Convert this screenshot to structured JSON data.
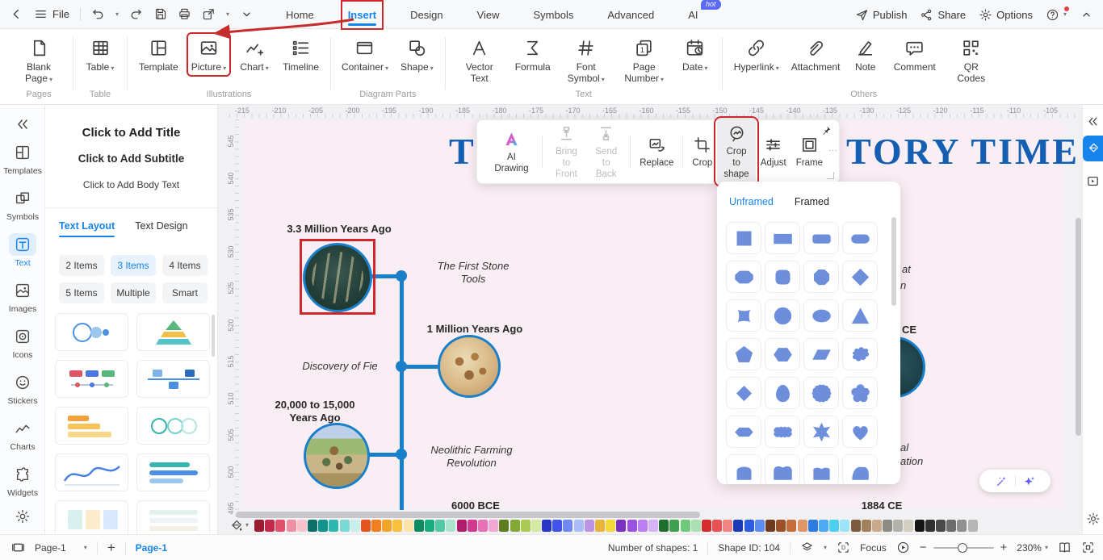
{
  "titlebar": {
    "file_label": "File",
    "tabs": [
      {
        "label": "Home"
      },
      {
        "label": "Insert",
        "active": true,
        "highlight": true
      },
      {
        "label": "Design"
      },
      {
        "label": "View"
      },
      {
        "label": "Symbols"
      },
      {
        "label": "Advanced"
      },
      {
        "label": "AI",
        "badge": "hot"
      }
    ],
    "publish_label": "Publish",
    "share_label": "Share",
    "options_label": "Options"
  },
  "ribbon": {
    "groups": [
      {
        "label": "Pages",
        "buttons": [
          {
            "label": "Blank Page",
            "icon": "blank-page",
            "dropdown": true
          }
        ]
      },
      {
        "label": "Table",
        "buttons": [
          {
            "label": "Table",
            "icon": "table",
            "dropdown": true
          }
        ]
      },
      {
        "label": "Illustrations",
        "buttons": [
          {
            "label": "Template",
            "icon": "template"
          },
          {
            "label": "Picture",
            "icon": "picture",
            "dropdown": true,
            "highlight": true
          },
          {
            "label": "Chart",
            "icon": "chart",
            "dropdown": true
          },
          {
            "label": "Timeline",
            "icon": "timeline"
          }
        ]
      },
      {
        "label": "Diagram Parts",
        "buttons": [
          {
            "label": "Container",
            "icon": "container",
            "dropdown": true
          },
          {
            "label": "Shape",
            "icon": "shape",
            "dropdown": true
          }
        ]
      },
      {
        "label": "Text",
        "buttons": [
          {
            "label": "Vector Text",
            "icon": "vector-text"
          },
          {
            "label": "Formula",
            "icon": "formula"
          },
          {
            "label": "Font Symbol",
            "icon": "font-symbol",
            "dropdown": true
          },
          {
            "label": "Page Number",
            "icon": "page-number",
            "dropdown": true
          },
          {
            "label": "Date",
            "icon": "date",
            "dropdown": true
          }
        ]
      },
      {
        "label": "Others",
        "buttons": [
          {
            "label": "Hyperlink",
            "icon": "hyperlink",
            "dropdown": true
          },
          {
            "label": "Attachment",
            "icon": "attachment"
          },
          {
            "label": "Note",
            "icon": "note"
          },
          {
            "label": "Comment",
            "icon": "comment"
          },
          {
            "label": "QR Codes",
            "icon": "qr-codes"
          }
        ]
      }
    ]
  },
  "left_rail": {
    "items": [
      {
        "label": "Templates",
        "icon": "templates"
      },
      {
        "label": "Symbols",
        "icon": "symbols"
      },
      {
        "label": "Text",
        "icon": "text",
        "active": true
      },
      {
        "label": "Images",
        "icon": "images"
      },
      {
        "label": "Icons",
        "icon": "icons"
      },
      {
        "label": "Stickers",
        "icon": "stickers"
      },
      {
        "label": "Charts",
        "icon": "charts"
      },
      {
        "label": "Widgets",
        "icon": "widgets"
      }
    ]
  },
  "text_panel": {
    "preview_title": "Click to Add Title",
    "preview_subtitle": "Click to Add Subtitle",
    "preview_body": "Click to Add Body Text",
    "tabs": [
      {
        "label": "Text Layout",
        "active": true
      },
      {
        "label": "Text Design"
      }
    ],
    "filters": [
      {
        "label": "2 Items"
      },
      {
        "label": "3 Items",
        "active": true
      },
      {
        "label": "4 Items"
      },
      {
        "label": "5 Items"
      },
      {
        "label": "Multiple"
      },
      {
        "label": "Smart"
      }
    ],
    "thumbnails": [
      "circles-diagram",
      "pyramid-diagram",
      "process-arrows",
      "timeline-boxes",
      "timeline-orange",
      "dot-circles",
      "wave-chart",
      "bar-list",
      "pale-boxes",
      "mini-rows"
    ]
  },
  "floating_toolbar": {
    "items": [
      {
        "label": "AI Drawing",
        "icon": "ai-drawing",
        "sep_after": true
      },
      {
        "label": "Bring to\nFront",
        "icon": "bring-front",
        "disabled": true
      },
      {
        "label": "Send to\nBack",
        "icon": "send-back",
        "disabled": true,
        "sep_after": true
      },
      {
        "label": "Replace",
        "icon": "replace",
        "sep_after": true
      },
      {
        "label": "Crop",
        "icon": "crop"
      },
      {
        "label": "Crop to\nshape",
        "icon": "crop-to-shape",
        "highlight": true
      },
      {
        "label": "Adjust",
        "icon": "adjust"
      },
      {
        "label": "Frame",
        "icon": "frame"
      }
    ]
  },
  "shape_popup": {
    "tabs": [
      {
        "label": "Unframed",
        "active": true
      },
      {
        "label": "Framed"
      }
    ],
    "shapes": [
      "square",
      "rectangle",
      "rounded-rectangle",
      "stadium",
      "flat-octagon",
      "rounded-square",
      "cut-corner-square",
      "diamond",
      "concave-square",
      "circle",
      "ellipse",
      "triangle",
      "pentagon",
      "hexagon",
      "parallelogram",
      "cloud",
      "rounded-diamond",
      "egg",
      "scalloped-circle",
      "flower",
      "wide-hexagon",
      "wavy-rectangle",
      "star",
      "heart",
      "arch",
      "double-bump",
      "notch-rectangle",
      "blob"
    ]
  },
  "canvas": {
    "title_left": "T",
    "title_right": "TORY TIME",
    "h_ruler": [
      "-215",
      "-210",
      "-205",
      "-200",
      "-195",
      "-190",
      "-185",
      "-180",
      "-175",
      "-170",
      "-165",
      "-160",
      "-155",
      "-150",
      "-145",
      "-140",
      "-135",
      "-130",
      "-125",
      "-120",
      "-115",
      "-110",
      "-105"
    ],
    "v_ruler": [
      "545",
      "540",
      "535",
      "530",
      "525",
      "520",
      "515",
      "510",
      "505",
      "500",
      "495"
    ],
    "timeline": {
      "m1": "3.3 Million Years Ago",
      "c1": "The First Stone\nTools",
      "m2": "1 Million Years Ago",
      "c2": "Discovery of Fie",
      "m3": "20,000 to 15,000\nYears Ago",
      "c3": "Neolithic Farming\nRevolution",
      "m4": "6000 BCE",
      "m5": "1884 CE",
      "f_at": "at",
      "f_n": "n",
      "f_ce": "CE",
      "f_al": "al",
      "f_ation": "ation"
    }
  },
  "palette": {
    "colors": [
      "#9b1b30",
      "#c22a4c",
      "#e2506b",
      "#ef8fa4",
      "#f7c2cd",
      "#0d6e6a",
      "#12938e",
      "#2cb8b0",
      "#7cd8d3",
      "#c8eeec",
      "#e4541c",
      "#ef7f22",
      "#f4a329",
      "#f7c13e",
      "#fae3a6",
      "#0f8a5f",
      "#19ad7e",
      "#52c9a4",
      "#abe5cf",
      "#ae1e6c",
      "#d2388e",
      "#e472b5",
      "#f0a8d2",
      "#5d7c20",
      "#81a934",
      "#abca51",
      "#d4e9a3",
      "#2736c6",
      "#3f54e8",
      "#7089f0",
      "#aabdf8",
      "#bd93e4",
      "#e9b23c",
      "#f6d838",
      "#7b30bf",
      "#9c52e0",
      "#ba80ef",
      "#d6b2f8",
      "#1f6e2f",
      "#3da04c",
      "#6fc97a",
      "#abe1b2",
      "#d42b2b",
      "#e85252",
      "#f18383",
      "#1a3bb8",
      "#2c5ce0",
      "#5d8bf0",
      "#6e3b1e",
      "#9c5124",
      "#c56c3b",
      "#e1966a",
      "#2b7be0",
      "#4daaf1",
      "#4bcff0",
      "#9ce5f8",
      "#7b5b3b",
      "#a2825c",
      "#caaa8a",
      "#8b8b84",
      "#b2b2aa",
      "#d2cec2",
      "#161616",
      "#303030",
      "#4a4a4a",
      "#6c6c6c",
      "#909090",
      "#b6b6b6"
    ]
  },
  "statusbar": {
    "page_selector": "Page-1",
    "page_tab": "Page-1",
    "shapes_count": "Number of shapes: 1",
    "shape_id": "Shape ID: 104",
    "focus_label": "Focus",
    "zoom_value": "230%"
  },
  "accent_color": "#1684ec",
  "highlight_color": "#d0282a",
  "timeline_color": "#1a7fc9",
  "shape_fill_color": "#6d8edb"
}
